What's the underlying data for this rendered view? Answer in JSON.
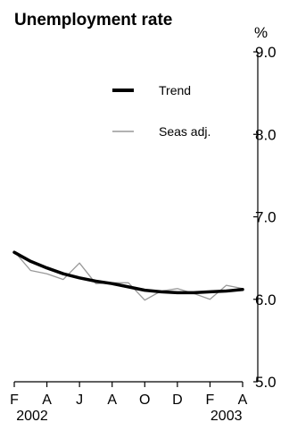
{
  "chart_data": {
    "type": "line",
    "title": "Unemployment rate",
    "ylabel": "%",
    "ylim": [
      5.0,
      9.0
    ],
    "yticks": [
      "5.0",
      "6.0",
      "7.0",
      "8.0",
      "9.0"
    ],
    "xticks": [
      "F",
      "A",
      "J",
      "A",
      "O",
      "D",
      "F",
      "A"
    ],
    "year_labels": [
      "2002",
      "2003"
    ],
    "x": [
      "Feb-2002",
      "Mar-2002",
      "Apr-2002",
      "May-2002",
      "Jun-2002",
      "Jul-2002",
      "Aug-2002",
      "Sep-2002",
      "Oct-2002",
      "Nov-2002",
      "Dec-2002",
      "Jan-2003",
      "Feb-2003",
      "Mar-2003",
      "Apr-2003"
    ],
    "series": [
      {
        "name": "Trend",
        "color": "#000000",
        "values": [
          6.57,
          6.46,
          6.38,
          6.31,
          6.26,
          6.22,
          6.19,
          6.15,
          6.11,
          6.09,
          6.08,
          6.08,
          6.09,
          6.1,
          6.12
        ]
      },
      {
        "name": "Seas adj.",
        "color": "#999999",
        "values": [
          6.58,
          6.35,
          6.31,
          6.24,
          6.44,
          6.19,
          6.2,
          6.2,
          5.99,
          6.1,
          6.13,
          6.07,
          6.0,
          6.17,
          6.13
        ]
      }
    ],
    "legend_position": "top-center",
    "grid": false
  }
}
